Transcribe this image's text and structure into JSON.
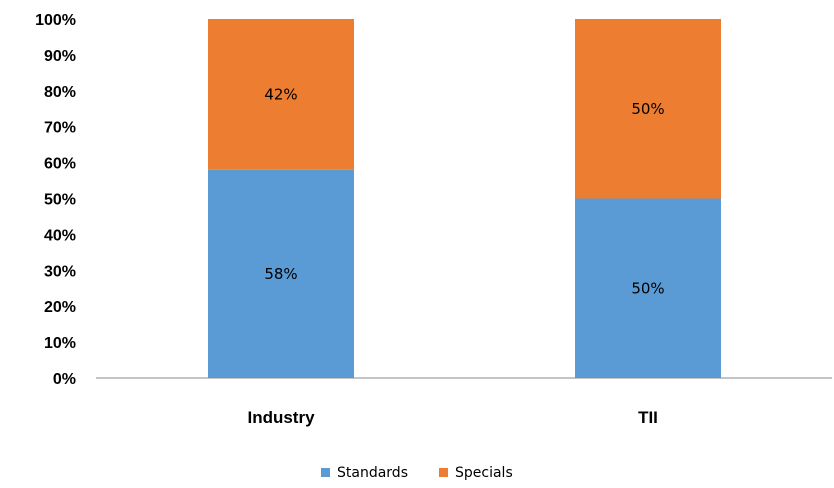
{
  "chart_data": {
    "type": "bar",
    "stacked": true,
    "categories": [
      "Industry",
      "TII"
    ],
    "series": [
      {
        "name": "Standards",
        "values": [
          58,
          50
        ],
        "labels": [
          "58%",
          "50%"
        ],
        "color": "#5b9bd5"
      },
      {
        "name": "Specials",
        "values": [
          42,
          50
        ],
        "labels": [
          "42%",
          "50%"
        ],
        "color": "#ed7d31"
      }
    ],
    "ylim": [
      0,
      100
    ],
    "yticks": [
      "0%",
      "10%",
      "20%",
      "30%",
      "40%",
      "50%",
      "60%",
      "70%",
      "80%",
      "90%",
      "100%"
    ],
    "grid": false,
    "legend": "bottom"
  }
}
